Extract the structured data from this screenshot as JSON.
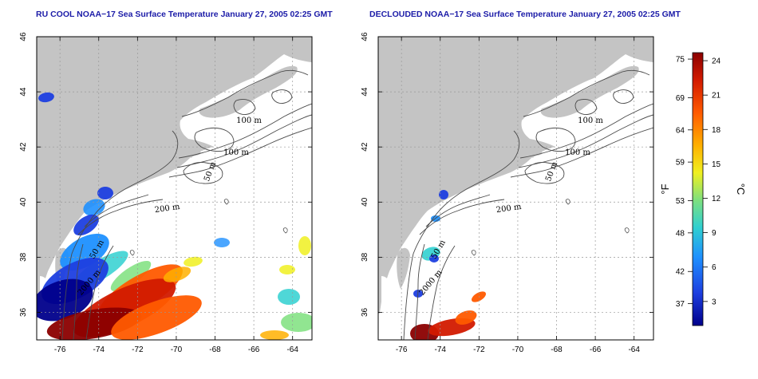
{
  "panels": [
    {
      "title": "RU COOL NOAA−17 Sea Surface Temperature January 27, 2005 02:25 GMT",
      "contour_labels": [
        "100 m",
        "100 m",
        "50 m",
        "200 m",
        "50 m",
        "2000 m"
      ]
    },
    {
      "title": "DECLOUDED NOAA−17 Sea Surface Temperature January 27, 2005 02:25 GMT",
      "contour_labels": [
        "100 m",
        "100 m",
        "50 m",
        "200 m",
        "50 m",
        "2000 m"
      ]
    }
  ],
  "map_axes": {
    "lon_range": [
      -77.2,
      -63
    ],
    "lat_range": [
      35,
      46
    ],
    "lon_ticks": [
      "-76",
      "-74",
      "-72",
      "-70",
      "-68",
      "-66",
      "-64"
    ],
    "lat_ticks": [
      "36",
      "38",
      "40",
      "42",
      "44",
      "46"
    ],
    "gridlines": "dotted"
  },
  "colorbar": {
    "fahrenheit_ticks": [
      "75",
      "69",
      "64",
      "59",
      "53",
      "48",
      "42",
      "37"
    ],
    "celsius_ticks": [
      "24",
      "21",
      "18",
      "15",
      "12",
      "9",
      "6",
      "3"
    ],
    "fahrenheit_unit": "°F",
    "celsius_unit": "°C",
    "colors": [
      "#8b0000",
      "#d21a00",
      "#ff5a00",
      "#ffb000",
      "#f0f020",
      "#7ee07e",
      "#30d0d0",
      "#1e90ff",
      "#1d3fe0",
      "#00008b"
    ]
  },
  "colors": {
    "land": "#c4c4c4",
    "water": "#ffffff",
    "title": "#1c1ca8",
    "contour": "#4a4a4a"
  }
}
